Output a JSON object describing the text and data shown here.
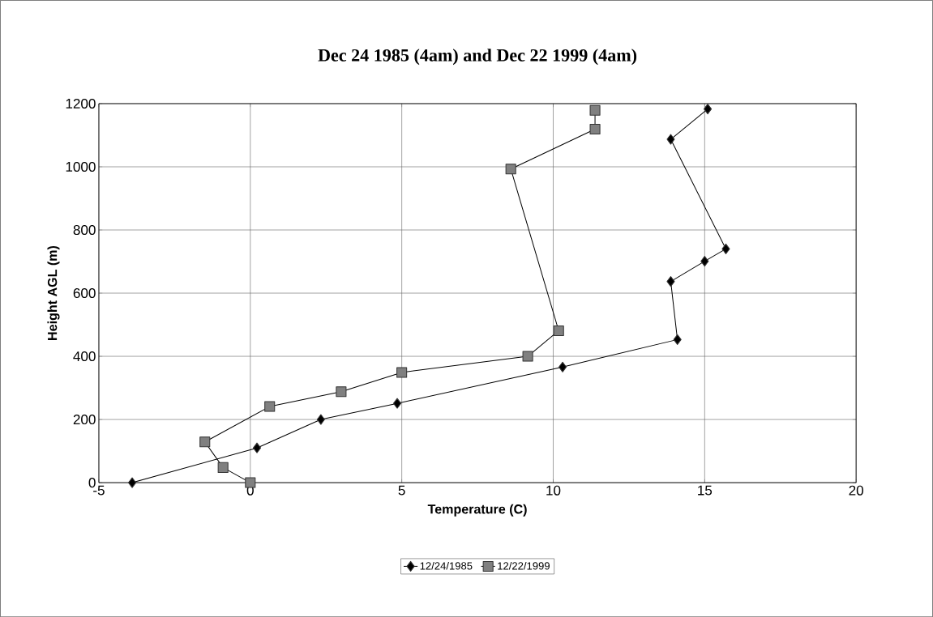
{
  "chart_data": {
    "type": "line",
    "title": "Dec 24 1985 (4am) and  Dec 22 1999 (4am)",
    "xlabel": "Temperature (C)",
    "ylabel": "Height AGL (m)",
    "series": [
      {
        "name": "12/24/1985",
        "color": "#000000",
        "marker": "diamond",
        "x": [
          -3.9,
          0.22,
          2.33,
          4.85,
          10.31,
          14.1,
          13.88,
          15.0,
          15.7,
          13.88,
          15.1
        ],
        "values": [
          0,
          110,
          200,
          251,
          366,
          453,
          637,
          701,
          740,
          1087,
          1183
        ]
      },
      {
        "name": "12/22/1999",
        "color": "#808080",
        "marker": "square",
        "x": [
          0,
          -0.9,
          -1.5,
          0.64,
          3.0,
          5.0,
          9.16,
          10.18,
          8.6,
          11.38,
          11.38
        ],
        "values": [
          0,
          48,
          129,
          241,
          288,
          349,
          400,
          481,
          993,
          1119,
          1179
        ]
      }
    ],
    "xlim": [
      -5,
      20
    ],
    "xticks": [
      -5,
      0,
      5,
      10,
      15,
      20
    ],
    "ylim": [
      0,
      1200
    ],
    "yticks": [
      0,
      200,
      400,
      600,
      800,
      1000,
      1200
    ],
    "grid": true,
    "legend": "bottom",
    "line_style": "solid"
  }
}
